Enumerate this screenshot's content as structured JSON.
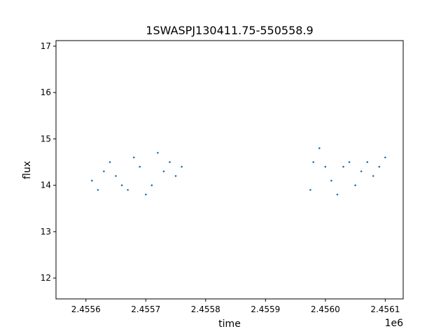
{
  "chart_data": {
    "type": "scatter",
    "title": "1SWASPJ130411.75-550558.9",
    "xlabel": "time",
    "ylabel": "flux",
    "x_offset_label": "1e6",
    "xlim": [
      2.45555,
      2.45613
    ],
    "ylim": [
      11.55,
      17.12
    ],
    "x_ticks": [
      2.4556,
      2.4557,
      2.4558,
      2.4559,
      2.456,
      2.4561
    ],
    "x_tick_labels": [
      "2.4556",
      "2.4557",
      "2.4558",
      "2.4559",
      "2.4560",
      "2.4561"
    ],
    "y_ticks": [
      12,
      13,
      14,
      15,
      16,
      17
    ],
    "y_tick_labels": [
      "12",
      "13",
      "14",
      "15",
      "16",
      "17"
    ],
    "grid": false,
    "legend": "none",
    "marker_color": "#1f77b4",
    "series": [
      {
        "x": [
          2.45561,
          2.45562,
          2.45563,
          2.45564,
          2.45565,
          2.45566,
          2.45567,
          2.45568,
          2.45569,
          2.4557,
          2.45571,
          2.45572,
          2.45573,
          2.45574,
          2.45575,
          2.45576,
          2.455975,
          2.45598,
          2.45599,
          2.456,
          2.45601,
          2.45602,
          2.45603,
          2.45604,
          2.45605,
          2.45606,
          2.45607,
          2.45608,
          2.45609,
          2.4561
        ],
        "y": [
          14.1,
          13.9,
          14.3,
          14.5,
          14.2,
          14.0,
          13.9,
          14.6,
          14.4,
          13.8,
          14.0,
          14.7,
          14.3,
          14.5,
          14.2,
          14.4,
          13.9,
          14.5,
          14.8,
          14.4,
          14.1,
          13.8,
          14.4,
          14.5,
          14.0,
          14.3,
          14.5,
          14.2,
          14.4,
          14.6
        ]
      }
    ]
  }
}
